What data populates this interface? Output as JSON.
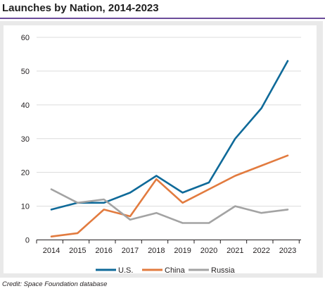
{
  "title": "Launches by Nation, 2014-2023",
  "credit": "Credit: Space Foundation database",
  "chart_data": {
    "type": "line",
    "title": "Launches by Nation, 2014-2023",
    "xlabel": "",
    "ylabel": "",
    "ylim": [
      0,
      60
    ],
    "yticks": [
      0,
      10,
      20,
      30,
      40,
      50,
      60
    ],
    "grid": true,
    "legend_position": "bottom",
    "x": [
      2014,
      2015,
      2016,
      2017,
      2018,
      2019,
      2020,
      2021,
      2022,
      2023
    ],
    "series": [
      {
        "name": "U.S.",
        "color": "#0f6a99",
        "values": [
          9,
          11,
          11,
          14,
          19,
          14,
          17,
          30,
          39,
          53
        ]
      },
      {
        "name": "China",
        "color": "#e27b3f",
        "values": [
          1,
          2,
          9,
          7,
          18,
          11,
          15,
          19,
          22,
          25
        ]
      },
      {
        "name": "Russia",
        "color": "#a3a3a3",
        "values": [
          15,
          11,
          12,
          6,
          8,
          5,
          5,
          10,
          8,
          9
        ]
      }
    ]
  }
}
